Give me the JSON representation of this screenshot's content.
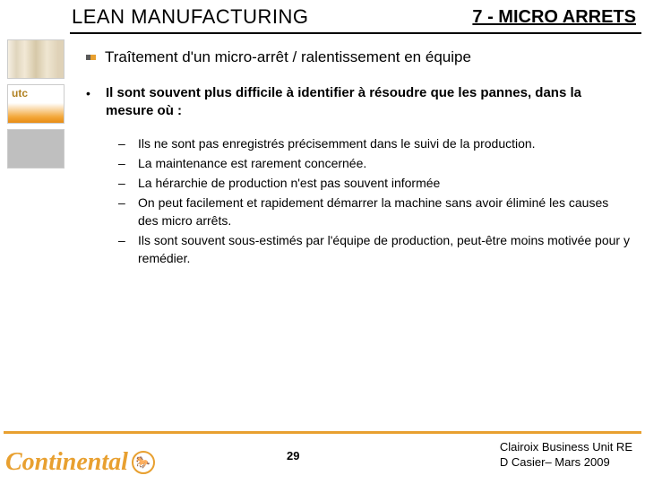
{
  "header": {
    "title_left": "LEAN MANUFACTURING",
    "title_right": "7 - MICRO ARRETS"
  },
  "colors": {
    "accent_orange": "#e8a030",
    "rule_black": "#000000",
    "grey_box": "#bfbfbf"
  },
  "main_bullet": {
    "text": "Traîtement d'un micro-arrêt / ralentissement en équipe"
  },
  "sub1": {
    "marker": "•",
    "text": "Il sont souvent plus difficile à identifier à  résoudre que les pannes, dans la mesure où :"
  },
  "sub2": [
    "Ils ne sont pas enregistrés précisemment dans le suivi de la production.",
    "La maintenance est rarement concernée.",
    "La hérarchie de production n'est pas souvent informée",
    "On peut facilement et rapidement démarrer la machine sans avoir éliminé les causes des micro arrêts.",
    "Ils sont souvent sous-estimés par l'équipe de production, peut-être moins motivée pour y remédier."
  ],
  "sub2_marker": "–",
  "sidebar": {
    "utc_label": "utc"
  },
  "footer": {
    "logo_text": "Continental",
    "page_number": "29",
    "right_line1": "Clairoix Business Unit RE",
    "right_line2": "D Casier– Mars 2009"
  }
}
